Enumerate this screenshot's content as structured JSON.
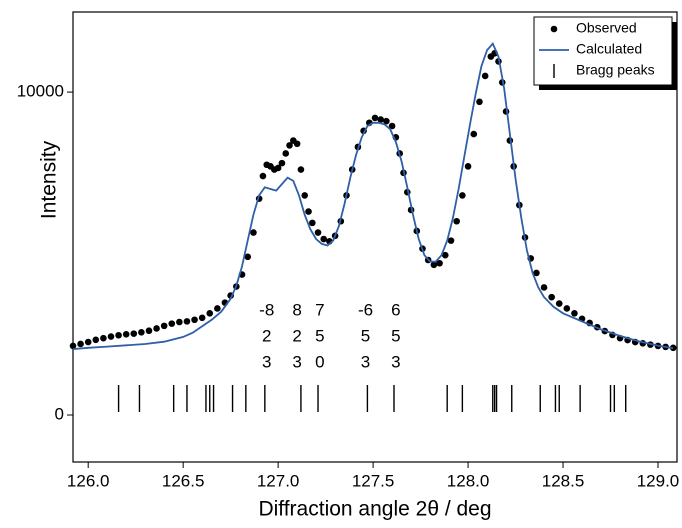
{
  "chart_data": {
    "type": "scatter",
    "xlabel": "Diffraction angle 2θ / deg",
    "ylabel": "Intensity",
    "xlim": [
      125.92,
      129.1
    ],
    "ylim": [
      -1455,
      12480
    ],
    "xticks": [
      {
        "value": 126,
        "label": "126.0"
      },
      {
        "value": 126.5,
        "label": "126.5"
      },
      {
        "value": 127,
        "label": "127.0"
      },
      {
        "value": 127.5,
        "label": "127.5"
      },
      {
        "value": 128,
        "label": "128.0"
      },
      {
        "value": 128.5,
        "label": "128.5"
      },
      {
        "value": 129,
        "label": "129.0"
      }
    ],
    "yticks": [
      0,
      10000
    ],
    "legend": "upper right",
    "series": [
      {
        "name": "Observed",
        "type": "scatter",
        "color": "#000000",
        "x": [
          125.92,
          125.96,
          126.0,
          126.04,
          126.08,
          126.12,
          126.16,
          126.2,
          126.24,
          126.28,
          126.32,
          126.36,
          126.4,
          126.44,
          126.48,
          126.52,
          126.56,
          126.6,
          126.64,
          126.68,
          126.72,
          126.75,
          126.78,
          126.81,
          126.84,
          126.87,
          126.9,
          126.92,
          126.94,
          126.96,
          126.98,
          127.0,
          127.02,
          127.04,
          127.06,
          127.08,
          127.1,
          127.12,
          127.14,
          127.16,
          127.18,
          127.21,
          127.24,
          127.27,
          127.3,
          127.33,
          127.36,
          127.39,
          127.42,
          127.45,
          127.48,
          127.51,
          127.54,
          127.57,
          127.6,
          127.62,
          127.64,
          127.66,
          127.68,
          127.7,
          127.73,
          127.76,
          127.79,
          127.82,
          127.85,
          127.88,
          127.91,
          127.94,
          127.97,
          128.0,
          128.03,
          128.06,
          128.09,
          128.12,
          128.14,
          128.16,
          128.18,
          128.2,
          128.22,
          128.24,
          128.27,
          128.3,
          128.33,
          128.36,
          128.4,
          128.44,
          128.48,
          128.52,
          128.56,
          128.6,
          128.64,
          128.68,
          128.72,
          128.76,
          128.8,
          128.84,
          128.88,
          128.92,
          128.96,
          129.0,
          129.04,
          129.08
        ],
        "values": [
          2140,
          2200,
          2260,
          2330,
          2380,
          2430,
          2470,
          2500,
          2520,
          2560,
          2610,
          2680,
          2760,
          2830,
          2880,
          2900,
          2950,
          3010,
          3150,
          3300,
          3480,
          3700,
          3980,
          4350,
          4900,
          5650,
          6700,
          7400,
          7750,
          7700,
          7600,
          7650,
          7800,
          8100,
          8350,
          8500,
          8400,
          7600,
          6800,
          6300,
          5950,
          5650,
          5450,
          5380,
          5550,
          6000,
          6800,
          7600,
          8300,
          8800,
          9050,
          9200,
          9150,
          9100,
          8950,
          8600,
          8100,
          7500,
          6900,
          6350,
          5700,
          5150,
          4800,
          4650,
          4700,
          4950,
          5400,
          6000,
          6800,
          7700,
          8700,
          9700,
          10500,
          11100,
          11200,
          10950,
          10300,
          9400,
          8500,
          7700,
          6500,
          5500,
          4850,
          4400,
          3950,
          3650,
          3450,
          3300,
          3150,
          2980,
          2850,
          2720,
          2600,
          2480,
          2380,
          2320,
          2260,
          2220,
          2180,
          2140,
          2110,
          2080
        ]
      },
      {
        "name": "Calculated",
        "type": "line",
        "color": "#2e5fa8",
        "x": [
          125.92,
          126.0,
          126.1,
          126.2,
          126.3,
          126.4,
          126.5,
          126.55,
          126.6,
          126.65,
          126.7,
          126.75,
          126.78,
          126.81,
          126.84,
          126.87,
          126.9,
          126.93,
          126.96,
          126.99,
          127.02,
          127.05,
          127.08,
          127.11,
          127.14,
          127.17,
          127.2,
          127.23,
          127.26,
          127.29,
          127.32,
          127.35,
          127.38,
          127.41,
          127.44,
          127.47,
          127.5,
          127.53,
          127.56,
          127.59,
          127.62,
          127.65,
          127.68,
          127.71,
          127.74,
          127.77,
          127.8,
          127.83,
          127.86,
          127.89,
          127.92,
          127.95,
          127.98,
          128.01,
          128.04,
          128.07,
          128.1,
          128.13,
          128.16,
          128.19,
          128.22,
          128.25,
          128.28,
          128.31,
          128.34,
          128.37,
          128.4,
          128.45,
          128.5,
          128.6,
          128.7,
          128.8,
          128.9,
          129.0,
          129.08
        ],
        "values": [
          2040,
          2080,
          2120,
          2160,
          2200,
          2270,
          2420,
          2550,
          2750,
          2950,
          3200,
          3600,
          4000,
          4600,
          5400,
          6200,
          6800,
          7050,
          7000,
          6950,
          7150,
          7350,
          7250,
          6800,
          6200,
          5750,
          5450,
          5300,
          5250,
          5400,
          5850,
          6550,
          7350,
          8050,
          8600,
          8950,
          9050,
          9050,
          9000,
          8850,
          8450,
          7850,
          7050,
          6200,
          5450,
          4950,
          4750,
          4750,
          4950,
          5400,
          6100,
          7000,
          8000,
          9000,
          9950,
          10800,
          11300,
          11500,
          11100,
          10100,
          8700,
          7300,
          6100,
          5100,
          4400,
          3950,
          3650,
          3350,
          3150,
          2900,
          2650,
          2450,
          2280,
          2150,
          2070
        ]
      },
      {
        "name": "Bragg peaks",
        "type": "ticks",
        "color": "#000000",
        "x": [
          126.16,
          126.27,
          126.45,
          126.52,
          126.62,
          126.64,
          126.66,
          126.76,
          126.83,
          126.93,
          127.12,
          127.21,
          127.47,
          127.61,
          127.89,
          127.97,
          128.13,
          128.14,
          128.15,
          128.23,
          128.38,
          128.46,
          128.48,
          128.59,
          128.75,
          128.77,
          128.83
        ]
      }
    ],
    "hkl": [
      {
        "x": 126.94,
        "text": [
          "-8",
          "2",
          "3"
        ]
      },
      {
        "x": 127.1,
        "text": [
          "8",
          "2",
          "3"
        ]
      },
      {
        "x": 127.22,
        "text": [
          "7",
          "5",
          "0"
        ]
      },
      {
        "x": 127.46,
        "text": [
          "-6",
          "5",
          "3"
        ]
      },
      {
        "x": 127.62,
        "text": [
          "6",
          "5",
          "3"
        ]
      }
    ]
  }
}
